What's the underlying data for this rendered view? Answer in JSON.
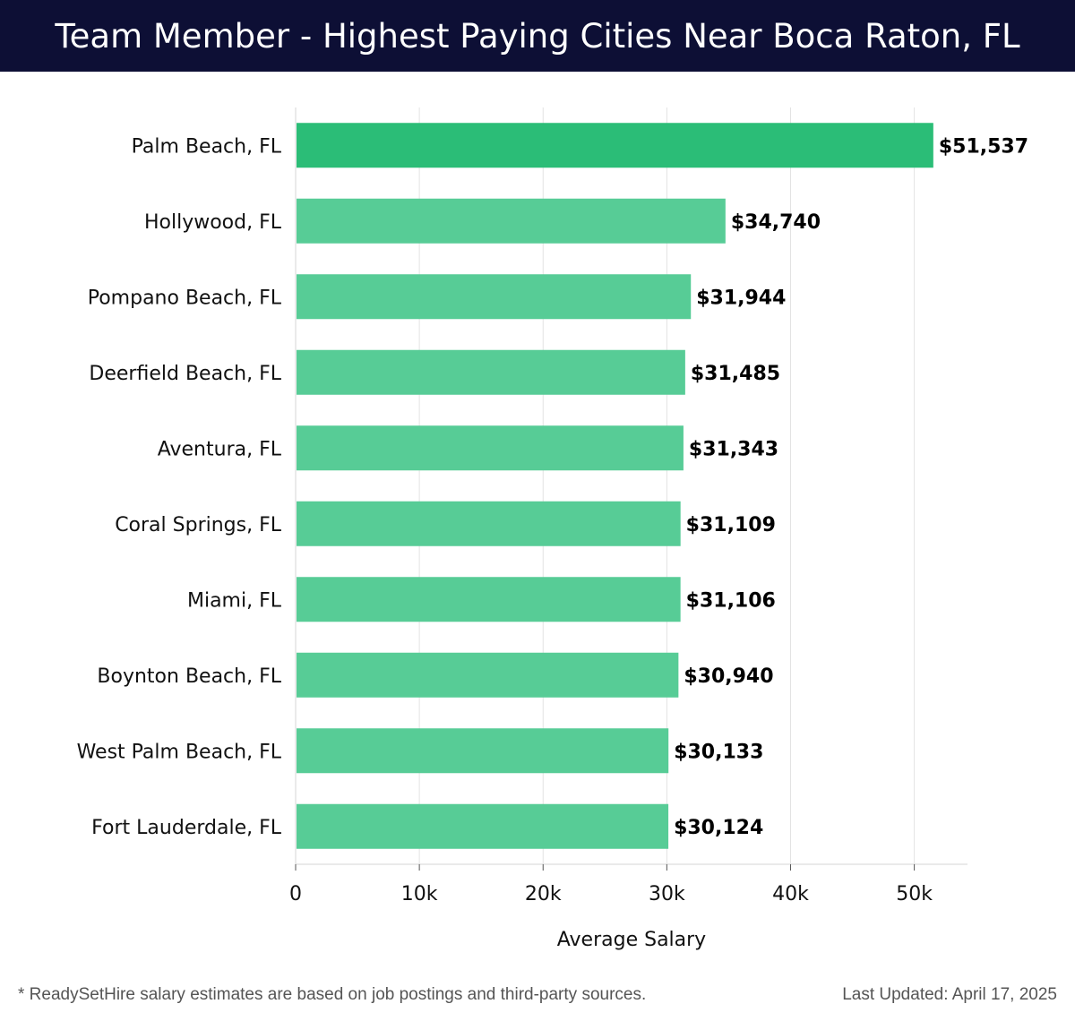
{
  "header": {
    "title": "Team Member - Highest Paying Cities Near Boca Raton, FL"
  },
  "chart_data": {
    "type": "bar",
    "orientation": "horizontal",
    "categories": [
      "Palm Beach, FL",
      "Hollywood, FL",
      "Pompano Beach, FL",
      "Deerfield Beach, FL",
      "Aventura, FL",
      "Coral Springs, FL",
      "Miami, FL",
      "Boynton Beach, FL",
      "West Palm Beach, FL",
      "Fort Lauderdale, FL"
    ],
    "values": [
      51537,
      34740,
      31944,
      31485,
      31343,
      31109,
      31106,
      30940,
      30133,
      30124
    ],
    "value_labels": [
      "$51,537",
      "$34,740",
      "$31,944",
      "$31,485",
      "$31,343",
      "$31,109",
      "$31,106",
      "$30,940",
      "$30,133",
      "$30,124"
    ],
    "xlabel": "Average Salary",
    "ylabel": "",
    "xlim": [
      0,
      54300
    ],
    "x_ticks": [
      0,
      10000,
      20000,
      30000,
      40000,
      50000
    ],
    "x_tick_labels": [
      "0",
      "10k",
      "20k",
      "30k",
      "40k",
      "50k"
    ],
    "grid": "vertical",
    "colors": {
      "highlight": "#2bbd77",
      "bar": "#57cc96",
      "gridline": "#e3e3e3",
      "header_bg": "#0d0f35"
    }
  },
  "footer": {
    "note": "* ReadySetHire salary estimates are based on job postings and third-party sources.",
    "last_updated": "Last Updated: April 17, 2025"
  }
}
